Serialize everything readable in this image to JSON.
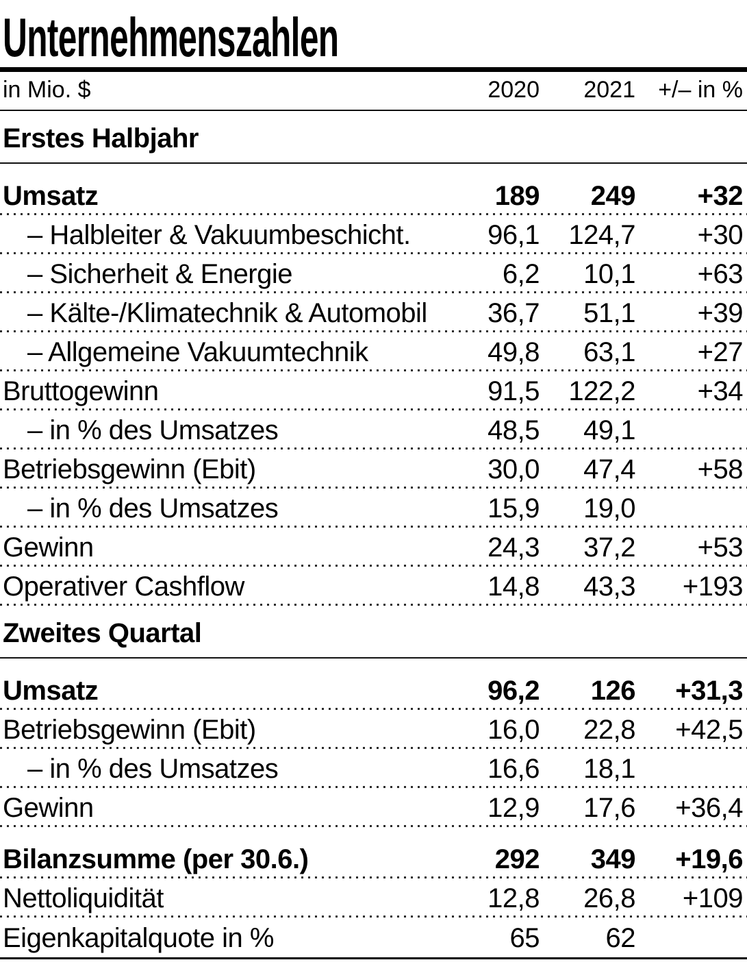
{
  "chart_data": {
    "type": "table",
    "title": "Unternehmenszahlen",
    "unit_label": "in Mio. $",
    "columns": [
      "2020",
      "2021",
      "+/– in %"
    ],
    "highlight_column": "2021",
    "highlight_color": "#EFEEE7",
    "sections": [
      {
        "title": "Erstes Halbjahr",
        "rows": [
          {
            "label": "Umsatz",
            "v2020": "189",
            "v2021": "249",
            "change": "+32",
            "bold": true
          },
          {
            "label": "– Halbleiter & Vakuumbeschicht.",
            "v2020": "96,1",
            "v2021": "124,7",
            "change": "+30",
            "indent": true
          },
          {
            "label": "– Sicherheit & Energie",
            "v2020": "6,2",
            "v2021": "10,1",
            "change": "+63",
            "indent": true
          },
          {
            "label": "– Kälte-/Klimatechnik & Automobil",
            "v2020": "36,7",
            "v2021": "51,1",
            "change": "+39",
            "indent": true
          },
          {
            "label": "– Allgemeine Vakuumtechnik",
            "v2020": "49,8",
            "v2021": "63,1",
            "change": "+27",
            "indent": true
          },
          {
            "label": "Bruttogewinn",
            "v2020": "91,5",
            "v2021": "122,2",
            "change": "+34"
          },
          {
            "label": "– in % des Umsatzes",
            "v2020": "48,5",
            "v2021": "49,1",
            "change": "",
            "indent": true
          },
          {
            "label": "Betriebsgewinn (Ebit)",
            "v2020": "30,0",
            "v2021": "47,4",
            "change": "+58"
          },
          {
            "label": "– in % des Umsatzes",
            "v2020": "15,9",
            "v2021": "19,0",
            "change": "",
            "indent": true
          },
          {
            "label": "Gewinn",
            "v2020": "24,3",
            "v2021": "37,2",
            "change": "+53"
          },
          {
            "label": "Operativer Cashflow",
            "v2020": "14,8",
            "v2021": "43,3",
            "change": "+193"
          }
        ]
      },
      {
        "title": "Zweites Quartal",
        "rows": [
          {
            "label": "Umsatz",
            "v2020": "96,2",
            "v2021": "126",
            "change": "+31,3",
            "bold": true
          },
          {
            "label": "Betriebsgewinn (Ebit)",
            "v2020": "16,0",
            "v2021": "22,8",
            "change": "+42,5"
          },
          {
            "label": "– in % des Umsatzes",
            "v2020": "16,6",
            "v2021": "18,1",
            "change": "",
            "indent": true
          },
          {
            "label": "Gewinn",
            "v2020": "12,9",
            "v2021": "17,6",
            "change": "+36,4"
          }
        ]
      },
      {
        "title": "",
        "rows": [
          {
            "label": "Bilanzsumme (per 30.6.)",
            "v2020": "292",
            "v2021": "349",
            "change": "+19,6",
            "bold": true
          },
          {
            "label": "Nettoliquidität",
            "v2020": "12,8",
            "v2021": "26,8",
            "change": "+109"
          },
          {
            "label": "Eigenkapitalquote in %",
            "v2020": "65",
            "v2021": "62",
            "change": ""
          }
        ]
      }
    ]
  }
}
